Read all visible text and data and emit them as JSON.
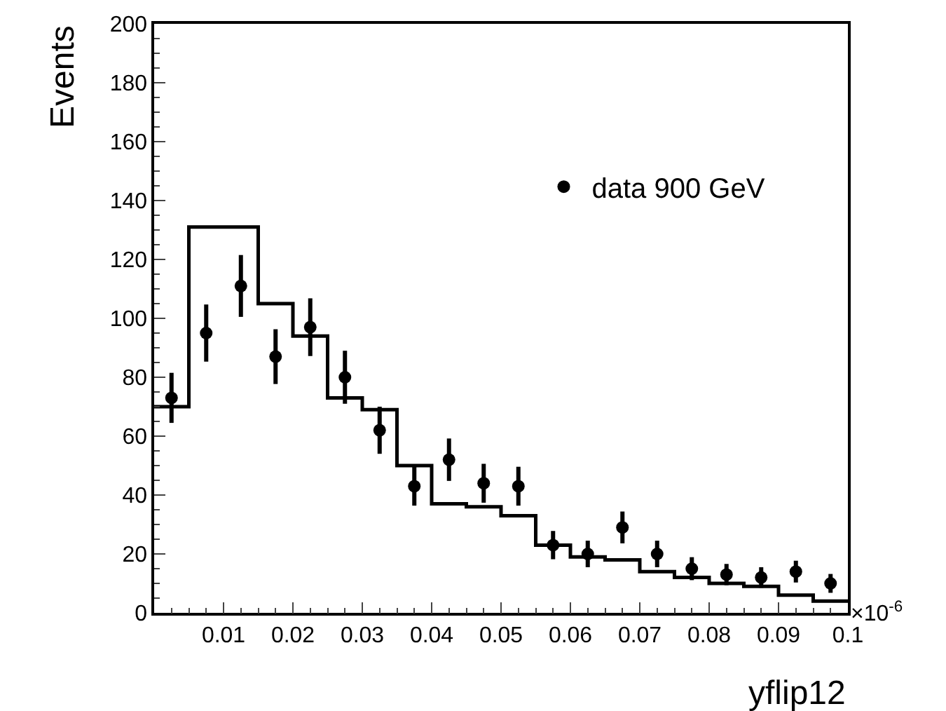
{
  "chart_data": {
    "type": "histogram",
    "xlabel": "yflip12",
    "ylabel": "Events",
    "xlim": [
      0,
      0.1
    ],
    "xticks": [
      0.01,
      0.02,
      0.03,
      0.04,
      0.05,
      0.06,
      0.07,
      0.08,
      0.09,
      0.1
    ],
    "ylim": [
      0,
      200
    ],
    "yticks": [
      0,
      20,
      40,
      60,
      80,
      100,
      120,
      140,
      160,
      180,
      200
    ],
    "annotations": [
      "×10$^{-6}$"
    ],
    "legend": "top right",
    "series": [
      {
        "color": "#000000",
        "bins": [
          0,
          0.005,
          0.01,
          0.015,
          0.02,
          0.025,
          0.03,
          0.035,
          0.04,
          0.045,
          0.05,
          0.055,
          0.06,
          0.065,
          0.07,
          0.075,
          0.08,
          0.085,
          0.09,
          0.095,
          0.1
        ],
        "values": [
          70,
          131,
          131,
          105,
          94,
          73,
          69,
          50,
          37,
          36,
          33,
          23,
          19,
          18,
          14,
          12,
          10,
          9,
          6,
          4
        ]
      },
      {
        "type": "scatter",
        "name": "data 900 GeV",
        "color": "#000000",
        "marker": "circle",
        "x": [
          0.0025,
          0.0075,
          0.0125,
          0.0175,
          0.0225,
          0.0275,
          0.0325,
          0.0375,
          0.0425,
          0.0475,
          0.0525,
          0.0575,
          0.0625,
          0.0675,
          0.0725,
          0.0775,
          0.0825,
          0.0875,
          0.0925,
          0.0975
        ],
        "values": [
          73,
          95,
          111,
          87,
          97,
          80,
          62,
          43,
          52,
          44,
          43,
          23,
          20,
          29,
          20,
          15,
          13,
          12,
          14,
          10
        ],
        "errors": [
          8.5,
          9.7,
          10.5,
          9.3,
          9.8,
          9,
          8,
          6.6,
          7.2,
          6.6,
          6.6,
          4.8,
          4.5,
          5.4,
          4.5,
          3.9,
          3.6,
          3.5,
          3.7,
          3.2
        ]
      }
    ]
  }
}
